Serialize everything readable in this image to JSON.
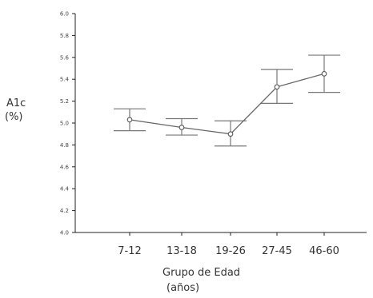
{
  "chart_data": {
    "type": "line",
    "categories": [
      "7-12",
      "13-18",
      "19-26",
      "27-45",
      "46-60"
    ],
    "values": [
      5.03,
      4.96,
      4.9,
      5.33,
      5.45
    ],
    "error_bars": {
      "upper": [
        5.13,
        5.04,
        5.02,
        5.49,
        5.62
      ],
      "lower": [
        4.93,
        4.89,
        4.79,
        5.18,
        5.28
      ]
    },
    "ylabel_lines": [
      "A1c",
      "(%)"
    ],
    "xlabel_lines": [
      "Grupo de Edad",
      "(años)"
    ],
    "ylim": [
      4.0,
      6.0
    ],
    "yticks": [
      4.0,
      4.2,
      4.4,
      4.6,
      4.8,
      5.0,
      5.2,
      5.4,
      5.6,
      5.8,
      6.0
    ],
    "ytick_labels": [
      "4.0",
      "4.2",
      "4.4",
      "4.6",
      "4.8",
      "5.0",
      "5.2",
      "5.4",
      "5.6",
      "5.8",
      "6.0"
    ],
    "grid": false,
    "colors": {
      "line": "#666666",
      "marker": "#555555",
      "error": "#777777",
      "axis": "#222222"
    }
  }
}
